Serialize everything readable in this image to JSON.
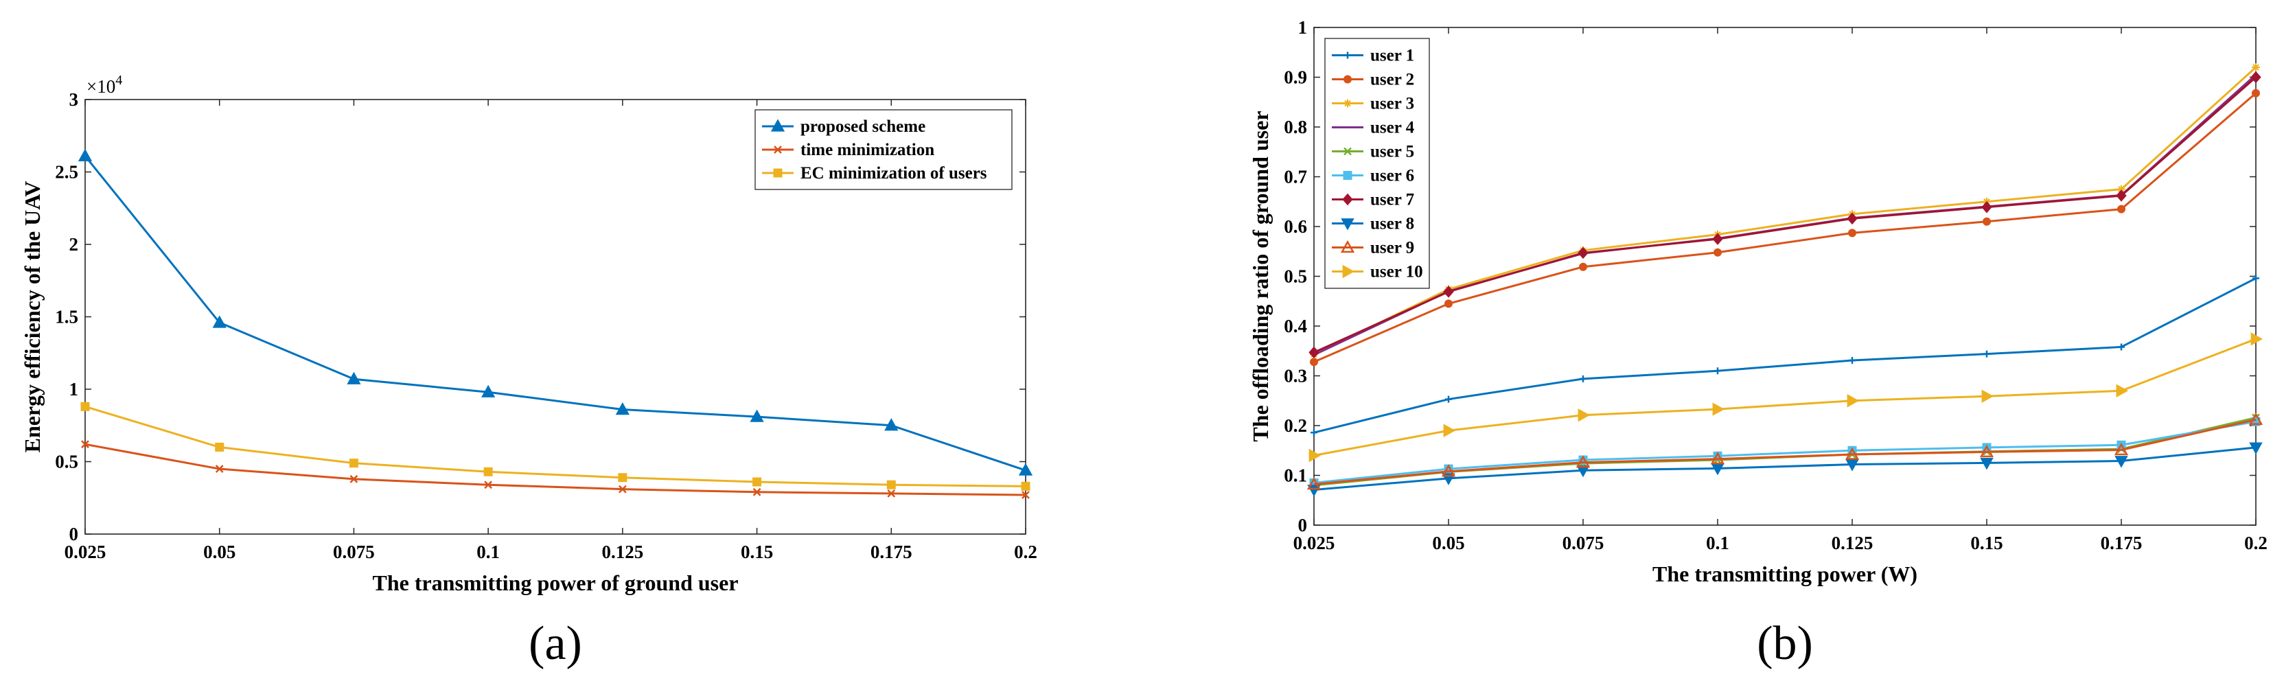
{
  "chart_data": [
    {
      "type": "line",
      "panel_label": "(a)",
      "title": "",
      "xlabel": "The transmitting power of ground user",
      "ylabel": "Energy efficiency of the UAV",
      "y_multiplier": "×10",
      "y_exponent": "4",
      "x": [
        0.025,
        0.05,
        0.075,
        0.1,
        0.125,
        0.15,
        0.175,
        0.2
      ],
      "xtick_labels": [
        "0.025",
        "0.05",
        "0.075",
        "0.1",
        "0.125",
        "0.15",
        "0.175",
        "0.2"
      ],
      "xlim": [
        0.025,
        0.2
      ],
      "ylim": [
        0,
        3
      ],
      "yticks": [
        0,
        0.5,
        1,
        1.5,
        2,
        2.5,
        3
      ],
      "ytick_labels": [
        "0",
        "0.5",
        "1",
        "1.5",
        "2",
        "2.5",
        "3"
      ],
      "legend_position": "top-right",
      "series": [
        {
          "name": "proposed scheme",
          "color": "#0072BD",
          "marker": "triangle",
          "values": [
            2.61,
            1.46,
            1.07,
            0.98,
            0.86,
            0.81,
            0.75,
            0.44
          ]
        },
        {
          "name": "time minimization",
          "color": "#D95319",
          "marker": "x",
          "values": [
            0.62,
            0.45,
            0.38,
            0.34,
            0.31,
            0.29,
            0.28,
            0.27
          ]
        },
        {
          "name": "EC minimization of users",
          "color": "#EDB120",
          "marker": "square",
          "values": [
            0.88,
            0.6,
            0.49,
            0.43,
            0.39,
            0.36,
            0.34,
            0.33
          ]
        }
      ]
    },
    {
      "type": "line",
      "panel_label": "(b)",
      "title": "",
      "xlabel": "The transmitting power (W)",
      "ylabel": "The offloading ratio of ground user",
      "x": [
        0.025,
        0.05,
        0.075,
        0.1,
        0.125,
        0.15,
        0.175,
        0.2
      ],
      "xtick_labels": [
        "0.025",
        "0.05",
        "0.075",
        "0.1",
        "0.125",
        "0.15",
        "0.175",
        "0.2"
      ],
      "xlim": [
        0.025,
        0.2
      ],
      "ylim": [
        0,
        1
      ],
      "yticks": [
        0,
        0.1,
        0.2,
        0.3,
        0.4,
        0.5,
        0.6,
        0.7,
        0.8,
        0.9,
        1
      ],
      "ytick_labels": [
        "0",
        "0.1",
        "0.2",
        "0.3",
        "0.4",
        "0.5",
        "0.6",
        "0.7",
        "0.8",
        "0.9",
        "1"
      ],
      "legend_position": "top-left",
      "series": [
        {
          "name": "user 1",
          "color": "#0072BD",
          "marker": "plus",
          "values": [
            0.186,
            0.253,
            0.294,
            0.31,
            0.331,
            0.344,
            0.358,
            0.496
          ]
        },
        {
          "name": "user 2",
          "color": "#D95319",
          "marker": "circle",
          "values": [
            0.328,
            0.445,
            0.519,
            0.548,
            0.587,
            0.61,
            0.635,
            0.868
          ]
        },
        {
          "name": "user 3",
          "color": "#EDB120",
          "marker": "star",
          "values": [
            0.343,
            0.474,
            0.552,
            0.584,
            0.625,
            0.65,
            0.675,
            0.92
          ]
        },
        {
          "name": "user 4",
          "color": "#7E2F8E",
          "marker": "none",
          "values": [
            0.342,
            0.47,
            0.546,
            0.576,
            0.617,
            0.64,
            0.663,
            0.905
          ]
        },
        {
          "name": "user 5",
          "color": "#77AC30",
          "marker": "x",
          "values": [
            0.08,
            0.107,
            0.124,
            0.131,
            0.142,
            0.148,
            0.153,
            0.216
          ]
        },
        {
          "name": "user 6",
          "color": "#4DBEEE",
          "marker": "square",
          "values": [
            0.085,
            0.113,
            0.131,
            0.139,
            0.15,
            0.156,
            0.161,
            0.208
          ]
        },
        {
          "name": "user 7",
          "color": "#A2142F",
          "marker": "diamond",
          "values": [
            0.347,
            0.469,
            0.547,
            0.575,
            0.616,
            0.639,
            0.662,
            0.9
          ]
        },
        {
          "name": "user 8",
          "color": "#0072BD",
          "marker": "triangle-down",
          "values": [
            0.071,
            0.094,
            0.11,
            0.114,
            0.122,
            0.125,
            0.129,
            0.156
          ]
        },
        {
          "name": "user 9",
          "color": "#D95319",
          "marker": "triangle-up",
          "values": [
            0.082,
            0.108,
            0.126,
            0.133,
            0.142,
            0.147,
            0.151,
            0.212
          ]
        },
        {
          "name": "user 10",
          "color": "#EDB120",
          "marker": "triangle-right",
          "values": [
            0.14,
            0.19,
            0.221,
            0.233,
            0.25,
            0.259,
            0.27,
            0.374
          ]
        }
      ]
    }
  ]
}
